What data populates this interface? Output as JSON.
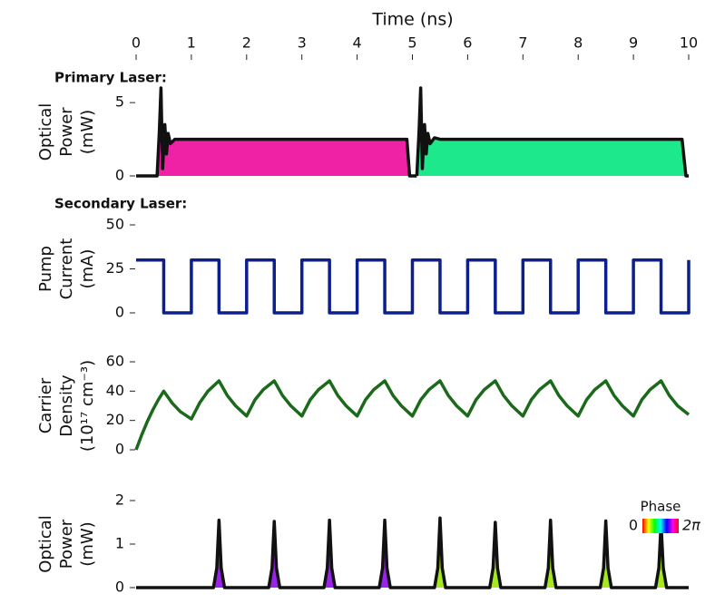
{
  "chart_data": [
    {
      "type": "line",
      "title": "Primary Laser:",
      "xlabel": "Time (ns)",
      "xlim": [
        0,
        10
      ],
      "xticks": [
        0,
        1,
        2,
        3,
        4,
        5,
        6,
        7,
        8,
        9,
        10
      ],
      "ylabel": [
        "Optical",
        "Power",
        "(mW)"
      ],
      "ylim": [
        0,
        6
      ],
      "yticks": [
        0,
        5
      ],
      "x": [
        0,
        0.38,
        0.42,
        0.45,
        0.48,
        0.52,
        0.55,
        0.58,
        0.62,
        0.7,
        0.8,
        4.9,
        4.95,
        5.08,
        5.12,
        5.15,
        5.18,
        5.22,
        5.25,
        5.28,
        5.32,
        5.4,
        5.5,
        9.88,
        9.95,
        10
      ],
      "series": [
        {
          "color": "#111111",
          "fill": "#ef22a6",
          "values": [
            0,
            0,
            3,
            6,
            0.5,
            3.5,
            1.5,
            2.9,
            2.2,
            2.5,
            2.5,
            2.5,
            0,
            0,
            null,
            null,
            null,
            null,
            null,
            null,
            null,
            null,
            null,
            null,
            null,
            null
          ]
        },
        {
          "color": "#111111",
          "fill": "#1ee88c",
          "values": [
            null,
            null,
            null,
            null,
            null,
            null,
            null,
            null,
            null,
            null,
            null,
            null,
            null,
            0,
            3,
            6,
            0.5,
            3.5,
            1.5,
            2.9,
            2.2,
            2.6,
            2.5,
            2.5,
            0,
            0
          ]
        }
      ]
    },
    {
      "type": "line",
      "title": "Secondary Laser:",
      "xlim": [
        0,
        10
      ],
      "ylabel": [
        "Pump",
        "Current",
        "(mA)"
      ],
      "ylim": [
        0,
        50
      ],
      "yticks": [
        0,
        25,
        50
      ],
      "x": [
        0,
        0.5,
        0.5,
        1,
        1,
        1.5,
        1.5,
        2,
        2,
        2.5,
        2.5,
        3,
        3,
        3.5,
        3.5,
        4,
        4,
        4.5,
        4.5,
        5,
        5,
        5.5,
        5.5,
        6,
        6,
        6.5,
        6.5,
        7,
        7,
        7.5,
        7.5,
        8,
        8,
        8.5,
        8.5,
        9,
        9,
        9.5,
        9.5,
        10,
        10
      ],
      "series": [
        {
          "color": "#0b1f8e",
          "values": [
            30,
            30,
            0,
            0,
            30,
            30,
            0,
            0,
            30,
            30,
            0,
            0,
            30,
            30,
            0,
            0,
            30,
            30,
            0,
            0,
            30,
            30,
            0,
            0,
            30,
            30,
            0,
            0,
            30,
            30,
            0,
            0,
            30,
            30,
            0,
            0,
            30,
            30,
            0,
            0,
            30
          ]
        }
      ]
    },
    {
      "type": "line",
      "xlim": [
        0,
        10
      ],
      "ylabel": [
        "Carrier",
        "Density",
        "(10¹⁷ cm⁻³)"
      ],
      "ylim": [
        0,
        60
      ],
      "yticks": [
        0,
        20,
        40,
        60
      ],
      "x": [
        0,
        0.1,
        0.2,
        0.3,
        0.4,
        0.5,
        0.65,
        0.8,
        1,
        1.15,
        1.3,
        1.5,
        1.65,
        1.8,
        2,
        2.15,
        2.3,
        2.5,
        2.65,
        2.8,
        3,
        3.15,
        3.3,
        3.5,
        3.65,
        3.8,
        4,
        4.15,
        4.3,
        4.5,
        4.65,
        4.8,
        5,
        5.15,
        5.3,
        5.5,
        5.65,
        5.8,
        6,
        6.15,
        6.3,
        6.5,
        6.65,
        6.8,
        7,
        7.15,
        7.3,
        7.5,
        7.65,
        7.8,
        8,
        8.15,
        8.3,
        8.5,
        8.65,
        8.8,
        9,
        9.15,
        9.3,
        9.5,
        9.65,
        9.8,
        10
      ],
      "series": [
        {
          "color": "#1b6a1b",
          "values": [
            0,
            10,
            19,
            27,
            34,
            40,
            32,
            26,
            21,
            32,
            40,
            47,
            37,
            30,
            23,
            34,
            41,
            47,
            37,
            30,
            23,
            34,
            41,
            47,
            37,
            30,
            23,
            34,
            41,
            47,
            37,
            30,
            23,
            34,
            41,
            47,
            37,
            30,
            23,
            34,
            41,
            47,
            37,
            30,
            23,
            34,
            41,
            47,
            37,
            30,
            23,
            34,
            41,
            47,
            37,
            30,
            23,
            34,
            41,
            47,
            37,
            30,
            24
          ]
        }
      ]
    },
    {
      "type": "line",
      "xlim": [
        0,
        10
      ],
      "ylabel": [
        "Optical",
        "Power",
        "(mW)"
      ],
      "ylim": [
        0,
        2
      ],
      "yticks": [
        0,
        1,
        2
      ],
      "legend": {
        "title": "Phase",
        "min_label": "0",
        "max_label": "2π",
        "colors": [
          "#ff0000",
          "#ffff00",
          "#00ff00",
          "#00ffff",
          "#0000ff",
          "#ff00ff",
          "#ff0000"
        ]
      },
      "x": [
        0,
        1.4,
        1.46,
        1.5,
        1.54,
        1.6,
        2.4,
        2.46,
        2.5,
        2.54,
        2.6,
        3.4,
        3.46,
        3.5,
        3.54,
        3.6,
        4.4,
        4.46,
        4.5,
        4.54,
        4.6,
        5,
        5.4,
        5.46,
        5.5,
        5.54,
        5.6,
        6.4,
        6.46,
        6.5,
        6.54,
        6.6,
        7.4,
        7.46,
        7.5,
        7.54,
        7.6,
        8.4,
        8.46,
        8.5,
        8.54,
        8.6,
        9.4,
        9.46,
        9.5,
        9.54,
        9.6,
        10
      ],
      "series": [
        {
          "color": "#111111",
          "fill": "#9b22ea",
          "values": [
            0,
            0,
            0.45,
            1.55,
            0.45,
            0,
            0,
            0.45,
            1.52,
            0.45,
            0,
            0,
            0.45,
            1.55,
            0.45,
            0,
            0,
            0.45,
            1.55,
            0.45,
            0,
            0,
            null,
            null,
            null,
            null,
            null,
            null,
            null,
            null,
            null,
            null,
            null,
            null,
            null,
            null,
            null,
            null,
            null,
            null,
            null,
            null,
            null,
            null,
            null,
            null,
            null,
            null
          ]
        },
        {
          "color": "#111111",
          "fill": "#a6e81e",
          "values": [
            null,
            null,
            null,
            null,
            null,
            null,
            null,
            null,
            null,
            null,
            null,
            null,
            null,
            null,
            null,
            null,
            null,
            null,
            null,
            null,
            null,
            0,
            0,
            0.45,
            1.6,
            0.45,
            0,
            0,
            0.45,
            1.5,
            0.45,
            0,
            0,
            0.45,
            1.55,
            0.45,
            0,
            0,
            0.45,
            1.53,
            0.45,
            0,
            0,
            0.45,
            1.47,
            0.45,
            0,
            0
          ]
        }
      ]
    }
  ]
}
